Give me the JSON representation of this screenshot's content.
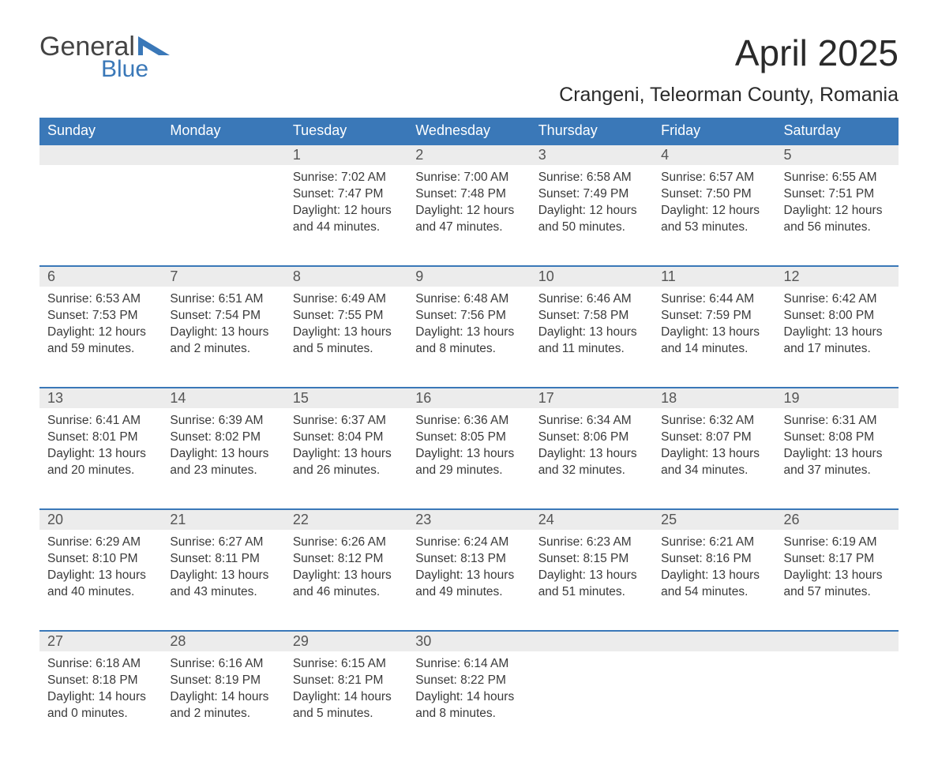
{
  "logo": {
    "word1": "General",
    "word2": "Blue",
    "tri_color": "#3a78b8"
  },
  "title": "April 2025",
  "location": "Crangeni, Teleorman County, Romania",
  "colors": {
    "header_bg": "#3a78b8",
    "header_fg": "#ffffff",
    "daynum_bg": "#ececec",
    "row_border": "#3a78b8",
    "text": "#3a3a3a"
  },
  "weekdays": [
    "Sunday",
    "Monday",
    "Tuesday",
    "Wednesday",
    "Thursday",
    "Friday",
    "Saturday"
  ],
  "weeks": [
    [
      null,
      null,
      {
        "n": "1",
        "sr": "7:02 AM",
        "ss": "7:47 PM",
        "dl": "12 hours and 44 minutes."
      },
      {
        "n": "2",
        "sr": "7:00 AM",
        "ss": "7:48 PM",
        "dl": "12 hours and 47 minutes."
      },
      {
        "n": "3",
        "sr": "6:58 AM",
        "ss": "7:49 PM",
        "dl": "12 hours and 50 minutes."
      },
      {
        "n": "4",
        "sr": "6:57 AM",
        "ss": "7:50 PM",
        "dl": "12 hours and 53 minutes."
      },
      {
        "n": "5",
        "sr": "6:55 AM",
        "ss": "7:51 PM",
        "dl": "12 hours and 56 minutes."
      }
    ],
    [
      {
        "n": "6",
        "sr": "6:53 AM",
        "ss": "7:53 PM",
        "dl": "12 hours and 59 minutes."
      },
      {
        "n": "7",
        "sr": "6:51 AM",
        "ss": "7:54 PM",
        "dl": "13 hours and 2 minutes."
      },
      {
        "n": "8",
        "sr": "6:49 AM",
        "ss": "7:55 PM",
        "dl": "13 hours and 5 minutes."
      },
      {
        "n": "9",
        "sr": "6:48 AM",
        "ss": "7:56 PM",
        "dl": "13 hours and 8 minutes."
      },
      {
        "n": "10",
        "sr": "6:46 AM",
        "ss": "7:58 PM",
        "dl": "13 hours and 11 minutes."
      },
      {
        "n": "11",
        "sr": "6:44 AM",
        "ss": "7:59 PM",
        "dl": "13 hours and 14 minutes."
      },
      {
        "n": "12",
        "sr": "6:42 AM",
        "ss": "8:00 PM",
        "dl": "13 hours and 17 minutes."
      }
    ],
    [
      {
        "n": "13",
        "sr": "6:41 AM",
        "ss": "8:01 PM",
        "dl": "13 hours and 20 minutes."
      },
      {
        "n": "14",
        "sr": "6:39 AM",
        "ss": "8:02 PM",
        "dl": "13 hours and 23 minutes."
      },
      {
        "n": "15",
        "sr": "6:37 AM",
        "ss": "8:04 PM",
        "dl": "13 hours and 26 minutes."
      },
      {
        "n": "16",
        "sr": "6:36 AM",
        "ss": "8:05 PM",
        "dl": "13 hours and 29 minutes."
      },
      {
        "n": "17",
        "sr": "6:34 AM",
        "ss": "8:06 PM",
        "dl": "13 hours and 32 minutes."
      },
      {
        "n": "18",
        "sr": "6:32 AM",
        "ss": "8:07 PM",
        "dl": "13 hours and 34 minutes."
      },
      {
        "n": "19",
        "sr": "6:31 AM",
        "ss": "8:08 PM",
        "dl": "13 hours and 37 minutes."
      }
    ],
    [
      {
        "n": "20",
        "sr": "6:29 AM",
        "ss": "8:10 PM",
        "dl": "13 hours and 40 minutes."
      },
      {
        "n": "21",
        "sr": "6:27 AM",
        "ss": "8:11 PM",
        "dl": "13 hours and 43 minutes."
      },
      {
        "n": "22",
        "sr": "6:26 AM",
        "ss": "8:12 PM",
        "dl": "13 hours and 46 minutes."
      },
      {
        "n": "23",
        "sr": "6:24 AM",
        "ss": "8:13 PM",
        "dl": "13 hours and 49 minutes."
      },
      {
        "n": "24",
        "sr": "6:23 AM",
        "ss": "8:15 PM",
        "dl": "13 hours and 51 minutes."
      },
      {
        "n": "25",
        "sr": "6:21 AM",
        "ss": "8:16 PM",
        "dl": "13 hours and 54 minutes."
      },
      {
        "n": "26",
        "sr": "6:19 AM",
        "ss": "8:17 PM",
        "dl": "13 hours and 57 minutes."
      }
    ],
    [
      {
        "n": "27",
        "sr": "6:18 AM",
        "ss": "8:18 PM",
        "dl": "14 hours and 0 minutes."
      },
      {
        "n": "28",
        "sr": "6:16 AM",
        "ss": "8:19 PM",
        "dl": "14 hours and 2 minutes."
      },
      {
        "n": "29",
        "sr": "6:15 AM",
        "ss": "8:21 PM",
        "dl": "14 hours and 5 minutes."
      },
      {
        "n": "30",
        "sr": "6:14 AM",
        "ss": "8:22 PM",
        "dl": "14 hours and 8 minutes."
      },
      null,
      null,
      null
    ]
  ],
  "labels": {
    "sunrise": "Sunrise: ",
    "sunset": "Sunset: ",
    "daylight": "Daylight: "
  }
}
